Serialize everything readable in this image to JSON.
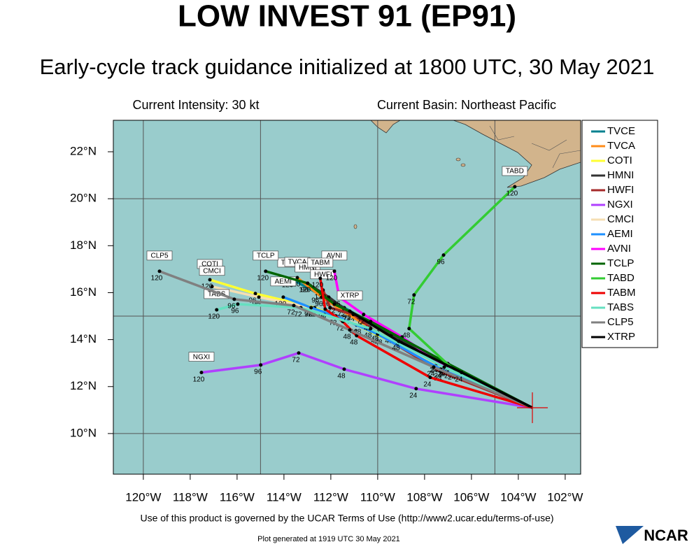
{
  "title": "LOW INVEST 91 (EP91)",
  "subtitle": "Early-cycle track guidance initialized at 1800 UTC, 30 May 2021",
  "intensity": "Current Intensity: 30 kt",
  "basin": "Current Basin: Northeast Pacific",
  "footer": "Use of this product is governed by the UCAR Terms of Use (http://www2.ucar.edu/terms-of-use)",
  "generated": "Plot generated at 1919 UTC   30 May 2021",
  "logo": "NCAR",
  "map": {
    "xlim": [
      -121.28,
      -101.34
    ],
    "ylim": [
      8.27,
      23.34
    ],
    "xticks": [
      {
        "value": -120,
        "label": "120°W"
      },
      {
        "value": -118,
        "label": "118°W"
      },
      {
        "value": -116,
        "label": "116°W"
      },
      {
        "value": -114,
        "label": "114°W"
      },
      {
        "value": -112,
        "label": "112°W"
      },
      {
        "value": -110,
        "label": "110°W"
      },
      {
        "value": -108,
        "label": "108°W"
      },
      {
        "value": -106,
        "label": "106°W"
      },
      {
        "value": -104,
        "label": "104°W"
      },
      {
        "value": -102,
        "label": "102°W"
      }
    ],
    "yticks": [
      {
        "value": 10,
        "label": "10°N"
      },
      {
        "value": 12,
        "label": "12°N"
      },
      {
        "value": 14,
        "label": "14°N"
      },
      {
        "value": 16,
        "label": "16°N"
      },
      {
        "value": 18,
        "label": "18°N"
      },
      {
        "value": 20,
        "label": "20°N"
      },
      {
        "value": 22,
        "label": "22°N"
      }
    ],
    "grid_lon": [
      -120,
      -115,
      -110,
      -105
    ],
    "grid_lat": [
      10,
      15,
      20
    ],
    "start": [
      -103.4,
      11.1
    ]
  },
  "tracks": [
    {
      "name": "TVCE",
      "color": "#00808f",
      "points": [
        [
          -103.4,
          11.1
        ],
        [
          -106.96,
          12.89
        ],
        [
          -109.85,
          14.47
        ],
        [
          -111.43,
          15.36
        ],
        [
          -112.54,
          15.96
        ],
        [
          -113.73,
          16.61
        ]
      ],
      "hours": [
        null,
        "24",
        "48",
        "72",
        "96",
        "120"
      ]
    },
    {
      "name": "TVCA",
      "color": "#ff8c1a",
      "points": [
        [
          -103.4,
          11.1
        ],
        [
          -107.01,
          12.83
        ],
        [
          -110.0,
          14.32
        ],
        [
          -111.49,
          15.21
        ],
        [
          -112.39,
          15.81
        ],
        [
          -113.43,
          16.64
        ]
      ],
      "hours": [
        null,
        "24",
        "48",
        "72",
        "96",
        "120"
      ]
    },
    {
      "name": "COTI",
      "color": "#ffff33",
      "points": [
        [
          -103.4,
          11.1
        ],
        [
          -107.5,
          13.0
        ],
        [
          -110.9,
          14.62
        ],
        [
          -112.69,
          15.36
        ],
        [
          -115.22,
          15.96
        ],
        [
          -117.16,
          16.55
        ]
      ],
      "hours": [
        null,
        "24",
        "48",
        "72",
        "96",
        "120"
      ]
    },
    {
      "name": "HMNI",
      "color": "#333333",
      "points": [
        [
          -103.4,
          11.1
        ],
        [
          -106.87,
          12.74
        ],
        [
          -109.4,
          14.23
        ],
        [
          -111.19,
          15.15
        ],
        [
          -112.09,
          15.81
        ],
        [
          -112.99,
          16.4
        ]
      ],
      "hours": [
        null,
        "24",
        "48",
        "72",
        "96",
        "120"
      ]
    },
    {
      "name": "HWFI",
      "color": "#a52a2a",
      "points": [
        [
          -103.4,
          11.1
        ],
        [
          -107.31,
          12.63
        ],
        [
          -109.85,
          14.17
        ],
        [
          -111.04,
          15.07
        ],
        [
          -112.03,
          15.36
        ],
        [
          -112.33,
          16.11
        ]
      ],
      "hours": [
        null,
        "24",
        "48",
        "72",
        "96",
        "120"
      ]
    },
    {
      "name": "NGXI",
      "color": "#b040ff",
      "points": [
        [
          -103.4,
          11.1
        ],
        [
          -108.36,
          11.91
        ],
        [
          -111.43,
          12.74
        ],
        [
          -113.37,
          13.43
        ],
        [
          -114.99,
          12.92
        ],
        [
          -117.52,
          12.6
        ]
      ],
      "hours": [
        null,
        "24",
        "48",
        "72",
        "96",
        "120"
      ]
    },
    {
      "name": "CMCI",
      "color": "#f5deb3",
      "points": [
        [
          -103.4,
          11.1
        ],
        [
          -107.46,
          12.98
        ],
        [
          -110.75,
          14.62
        ],
        [
          -112.84,
          15.36
        ],
        [
          -115.07,
          15.81
        ],
        [
          -117.07,
          16.26
        ]
      ],
      "hours": [
        null,
        "24",
        "48",
        "72",
        "96",
        "120"
      ]
    },
    {
      "name": "AEMI",
      "color": "#1e90ff",
      "points": [
        [
          -103.4,
          11.1
        ],
        [
          -107.31,
          12.74
        ],
        [
          -110.0,
          14.23
        ],
        [
          -111.79,
          15.01
        ],
        [
          -112.84,
          15.36
        ],
        [
          -114.03,
          15.81
        ]
      ],
      "hours": [
        null,
        "24",
        "48",
        "72",
        "96",
        "120"
      ]
    },
    {
      "name": "AVNI",
      "color": "#ff00ff",
      "points": [
        [
          -103.4,
          11.1
        ],
        [
          -107.07,
          12.83
        ],
        [
          -108.96,
          14.11
        ],
        [
          -110.6,
          15.07
        ],
        [
          -111.64,
          15.81
        ],
        [
          -111.85,
          16.91
        ]
      ],
      "hours": [
        null,
        "24",
        "48",
        "72",
        "96",
        "120"
      ]
    },
    {
      "name": "TCLP",
      "color": "#006400",
      "points": [
        [
          -103.4,
          11.1
        ],
        [
          -107.01,
          12.98
        ],
        [
          -110.3,
          14.77
        ],
        [
          -111.85,
          15.51
        ],
        [
          -112.99,
          16.4
        ],
        [
          -114.78,
          16.91
        ]
      ],
      "hours": [
        null,
        "24",
        "48",
        "72",
        "96",
        "120"
      ]
    },
    {
      "name": "TABD",
      "color": "#33cc33",
      "points": [
        [
          -103.4,
          11.1
        ],
        [
          -106.72,
          12.68
        ],
        [
          -108.66,
          14.47
        ],
        [
          -108.45,
          15.9
        ],
        [
          -107.19,
          17.6
        ],
        [
          -104.15,
          20.51
        ]
      ],
      "hours": [
        null,
        "24",
        "48",
        "72",
        "96",
        "120"
      ]
    },
    {
      "name": "TABM",
      "color": "#ee0000",
      "points": [
        [
          -103.4,
          11.1
        ],
        [
          -107.76,
          12.39
        ],
        [
          -110.9,
          14.17
        ],
        [
          -111.49,
          14.77
        ],
        [
          -112.24,
          15.3
        ],
        [
          -112.45,
          16.61
        ]
      ],
      "hours": [
        null,
        "24",
        "48",
        "72",
        "96",
        "120"
      ]
    },
    {
      "name": "TABS",
      "color": "#66e0c0",
      "points": [
        [
          -103.4,
          11.1
        ],
        [
          -107.16,
          12.83
        ],
        [
          -110.3,
          14.47
        ],
        [
          -113.28,
          15.36
        ],
        [
          -115.97,
          15.51
        ],
        [
          -116.87,
          15.27
        ]
      ],
      "hours": [
        null,
        "24",
        "48",
        "72",
        "96",
        "120"
      ]
    },
    {
      "name": "CLP5",
      "color": "#808080",
      "points": [
        [
          -103.4,
          11.1
        ],
        [
          -107.61,
          12.83
        ],
        [
          -111.19,
          14.41
        ],
        [
          -113.58,
          15.45
        ],
        [
          -116.12,
          15.72
        ],
        [
          -119.31,
          16.91
        ]
      ],
      "hours": [
        null,
        "24",
        "48",
        "72",
        "96",
        "120"
      ]
    },
    {
      "name": "XTRP",
      "color": "#000000",
      "points": [
        [
          -103.4,
          11.1
        ],
        [
          -106.42,
          12.6
        ],
        [
          -109.1,
          13.93
        ],
        [
          -111.19,
          15.21
        ]
      ],
      "hours": [
        null,
        "24",
        "48",
        "72"
      ]
    }
  ]
}
